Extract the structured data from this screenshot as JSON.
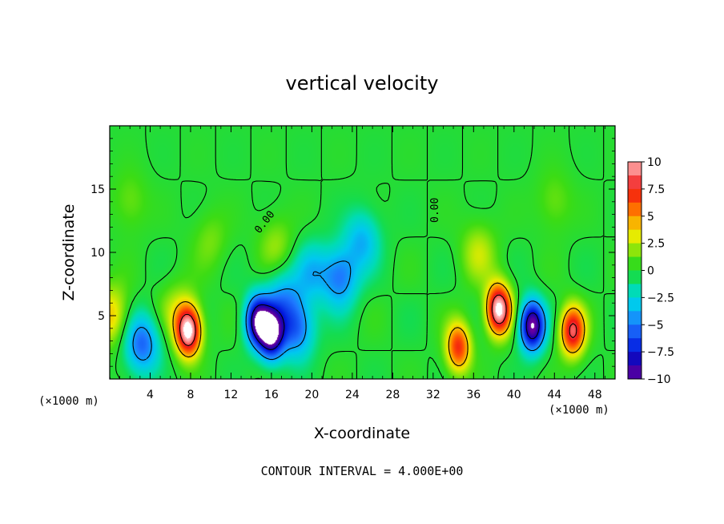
{
  "chart_data": {
    "type": "heatmap",
    "title": "vertical velocity",
    "xlabel": "X-coordinate",
    "ylabel": "Z-coordinate",
    "x_unit": "(×1000 m)",
    "x_unit_right": "(×1000 m)",
    "xlim": [
      0,
      50
    ],
    "ylim": [
      0,
      20
    ],
    "x_ticks": [
      4,
      8,
      12,
      16,
      20,
      24,
      28,
      32,
      36,
      40,
      44,
      48
    ],
    "x_tick_labels": [
      "4",
      "8",
      "12",
      "16",
      "20",
      "24",
      "28",
      "32",
      "36",
      "40",
      "44",
      "48"
    ],
    "y_ticks": [
      5,
      10,
      15
    ],
    "y_tick_labels": [
      "5",
      "10",
      "15"
    ],
    "colorbar": {
      "vmin": -10,
      "vmax": 10,
      "ticks": [
        10,
        7.5,
        5,
        2.5,
        0,
        -2.5,
        -5,
        -7.5,
        -10
      ],
      "tick_labels": [
        "10",
        "7.5",
        "5",
        "2.5",
        "0",
        "−2.5",
        "−5",
        "−7.5",
        "−10"
      ]
    },
    "contour_labels": [
      "0.00",
      "0.00"
    ],
    "annotation": "CONTOUR INTERVAL = 4.000E+00",
    "features": [
      {
        "x": 0.2,
        "z": 5.0,
        "w": 4.0
      },
      {
        "x": 3.2,
        "z": 2.8,
        "w": -5.5
      },
      {
        "x": 6.5,
        "z": 5.5,
        "w": 2.0
      },
      {
        "x": 7.8,
        "z": 3.8,
        "w": 11.0
      },
      {
        "x": 14.6,
        "z": 4.6,
        "w": -9.0
      },
      {
        "x": 16.0,
        "z": 3.5,
        "w": -9.5
      },
      {
        "x": 18.5,
        "z": 4.0,
        "w": -5.5
      },
      {
        "x": 17.0,
        "z": 6.5,
        "w": -3.5
      },
      {
        "x": 22.8,
        "z": 8.0,
        "w": -5.0
      },
      {
        "x": 20.0,
        "z": 8.5,
        "w": -3.0
      },
      {
        "x": 25.0,
        "z": 11.0,
        "w": -3.5
      },
      {
        "x": 16.5,
        "z": 10.5,
        "w": 2.0
      },
      {
        "x": 34.5,
        "z": 2.5,
        "w": 7.0
      },
      {
        "x": 38.5,
        "z": 5.5,
        "w": 11.0
      },
      {
        "x": 36.5,
        "z": 10.0,
        "w": 2.5
      },
      {
        "x": 41.8,
        "z": 4.2,
        "w": -10.5
      },
      {
        "x": 45.8,
        "z": 3.8,
        "w": 8.5
      },
      {
        "x": 44.0,
        "z": 14.0,
        "w": 1.5
      },
      {
        "x": 2.0,
        "z": 14.0,
        "w": 1.5
      },
      {
        "x": 10.0,
        "z": 11.0,
        "w": 1.5
      }
    ]
  }
}
